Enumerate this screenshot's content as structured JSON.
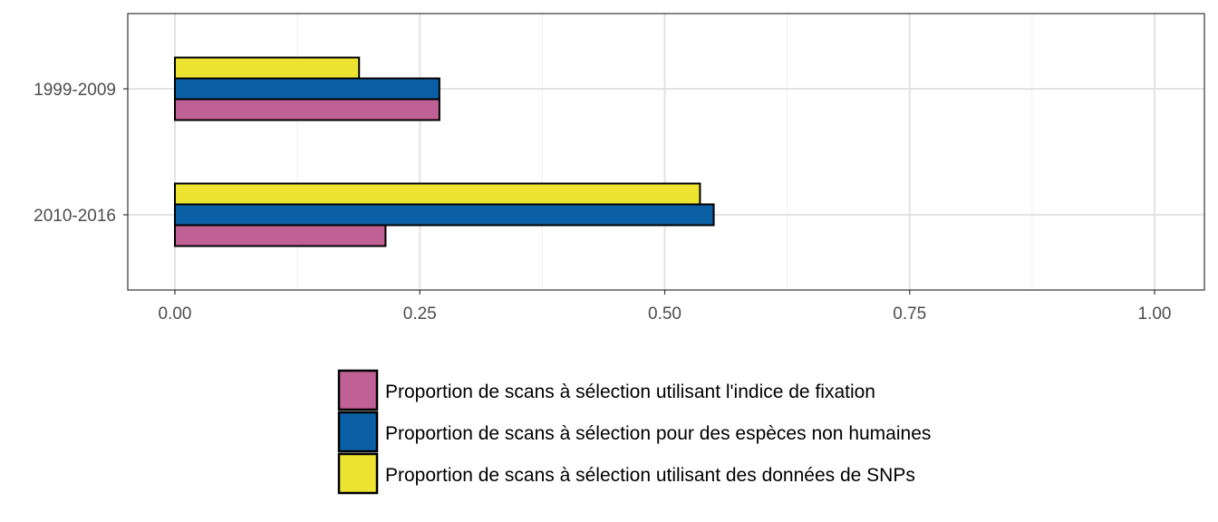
{
  "chart_data": {
    "type": "bar",
    "orientation": "horizontal",
    "categories": [
      "1999-2009",
      "2010-2016"
    ],
    "series": [
      {
        "name": "Proportion de scans à sélection utilisant l'indice de fixation",
        "color": "#C06196",
        "values": [
          0.27,
          0.215
        ]
      },
      {
        "name": "Proportion de scans à sélection pour des espèces non humaines",
        "color": "#0B5FA5",
        "values": [
          0.27,
          0.55
        ]
      },
      {
        "name": "Proportion de scans à sélection utilisant des données de SNPs",
        "color": "#EDE432",
        "values": [
          0.188,
          0.536
        ]
      }
    ],
    "xlim": [
      0,
      1
    ],
    "xticks": [
      "0.00",
      "0.25",
      "0.50",
      "0.75",
      "1.00"
    ],
    "xtick_values": [
      0,
      0.25,
      0.5,
      0.75,
      1.0
    ],
    "title": "",
    "xlabel": "",
    "ylabel": "",
    "grid": true,
    "legend_position": "bottom"
  }
}
